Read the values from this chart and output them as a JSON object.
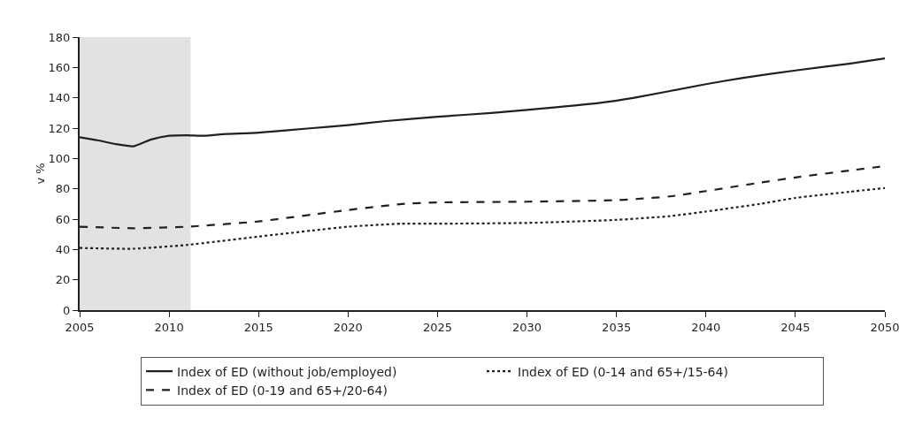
{
  "chart_data": {
    "type": "line",
    "ylabel": "v %",
    "xlim": [
      2005,
      2050
    ],
    "ylim": [
      0,
      180
    ],
    "xticks": [
      2005,
      2010,
      2015,
      2020,
      2025,
      2030,
      2035,
      2040,
      2045,
      2050
    ],
    "yticks": [
      0,
      20,
      40,
      60,
      80,
      100,
      120,
      140,
      160,
      180
    ],
    "grid": false,
    "legend": "bottom",
    "marker": "none",
    "bands": [
      {
        "axis": "x",
        "from": 2005,
        "to": 2011.2,
        "color": "#e1e2e4"
      }
    ],
    "series": [
      {
        "name": "Index of ED (without job/employed)",
        "color": "#231f20",
        "line_style": "solid",
        "x": [
          2005,
          2006,
          2007,
          2008,
          2009,
          2010,
          2011,
          2012,
          2013,
          2015,
          2018,
          2020,
          2022,
          2025,
          2028,
          2030,
          2034,
          2036,
          2040,
          2042,
          2045,
          2048,
          2050
        ],
        "values": [
          114,
          112,
          109.5,
          108,
          112.5,
          115,
          115.3,
          115,
          116,
          117,
          120,
          122,
          124.5,
          127.5,
          130,
          132,
          136.5,
          140,
          149,
          153,
          158,
          162.5,
          166
        ]
      },
      {
        "name": "Index of ED (0-14 and 65+/15-64)",
        "color": "#231f20",
        "line_style": "dotted",
        "x": [
          2005,
          2008,
          2011,
          2015,
          2018,
          2020,
          2023,
          2025,
          2030,
          2035,
          2038,
          2040,
          2043,
          2045,
          2048,
          2050
        ],
        "values": [
          41,
          40.5,
          43,
          48.5,
          52.5,
          55,
          57,
          57,
          57.5,
          59.5,
          62,
          65,
          70,
          74,
          78,
          80.5
        ]
      },
      {
        "name": "Index of ED (0-19 and 65+/20-64)",
        "color": "#231f20",
        "line_style": "dashed",
        "x": [
          2005,
          2008,
          2011,
          2015,
          2018,
          2020,
          2023,
          2025,
          2030,
          2035,
          2038,
          2040,
          2043,
          2045,
          2048,
          2050
        ],
        "values": [
          55,
          54,
          55,
          58.5,
          63,
          66,
          70,
          71,
          71.5,
          72.5,
          75,
          78.5,
          84,
          87.5,
          92,
          95
        ]
      }
    ]
  }
}
